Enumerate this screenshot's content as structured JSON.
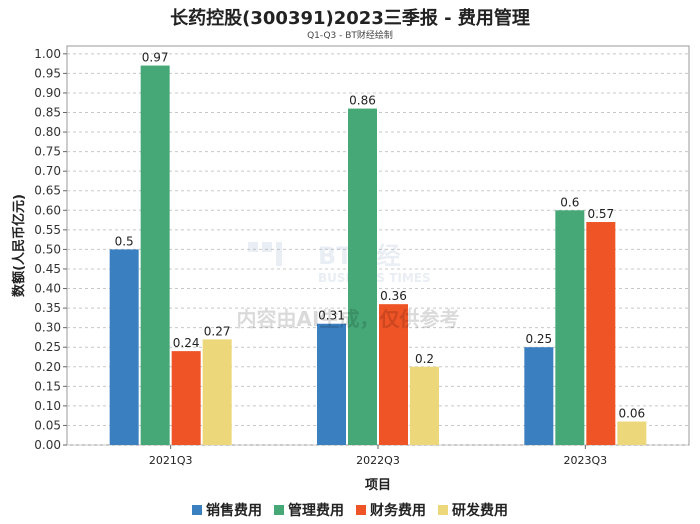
{
  "title": "长药控股(300391)2023三季报 - 费用管理",
  "subtitle": "Q1-Q3 - BT财经绘制",
  "watermark": {
    "brand": "BT财经",
    "brand_en": "BUSINESS TIMES",
    "notice": "内容由AI生成，仅供参考"
  },
  "chart_data": {
    "type": "bar",
    "title": "长药控股(300391)2023三季报 - 费用管理",
    "subtitle": "Q1-Q3 - BT财经绘制",
    "xlabel": "项目",
    "ylabel": "数额(人民币亿元)",
    "ylim": [
      0,
      1.02
    ],
    "yticks": [
      "0.00",
      "0.05",
      "0.10",
      "0.15",
      "0.20",
      "0.25",
      "0.30",
      "0.35",
      "0.40",
      "0.45",
      "0.50",
      "0.55",
      "0.60",
      "0.65",
      "0.70",
      "0.75",
      "0.80",
      "0.85",
      "0.90",
      "0.95",
      "1.00"
    ],
    "categories": [
      "2021Q3",
      "2022Q3",
      "2023Q3"
    ],
    "series": [
      {
        "name": "销售费用",
        "color": "#3a7fbf",
        "values": [
          0.5,
          0.31,
          0.25
        ],
        "labels": [
          "0.5",
          "0.31",
          "0.25"
        ]
      },
      {
        "name": "管理费用",
        "color": "#45a876",
        "values": [
          0.97,
          0.86,
          0.6
        ],
        "labels": [
          "0.97",
          "0.86",
          "0.6"
        ]
      },
      {
        "name": "财务费用",
        "color": "#ef5426",
        "values": [
          0.24,
          0.36,
          0.57
        ],
        "labels": [
          "0.24",
          "0.36",
          "0.57"
        ]
      },
      {
        "name": "研发费用",
        "color": "#ecd87a",
        "values": [
          0.27,
          0.2,
          0.06
        ],
        "labels": [
          "0.27",
          "0.2",
          "0.06"
        ]
      }
    ],
    "grid": true,
    "legend_position": "bottom"
  }
}
